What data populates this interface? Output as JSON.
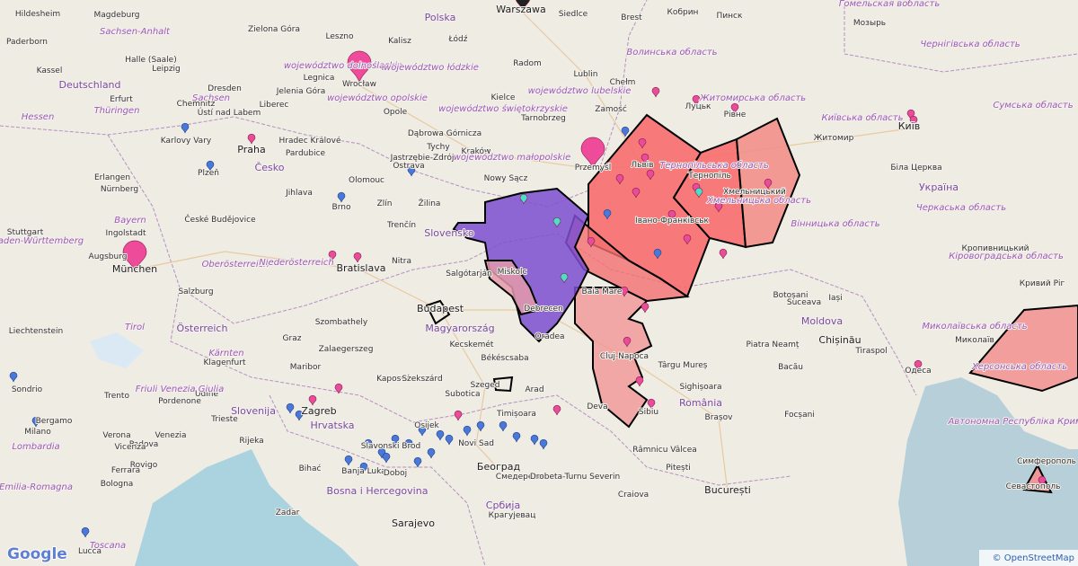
{
  "logo": "Google",
  "attribution": "© OpenStreetMap",
  "places": [
    "Warszawa",
    "Siedlce",
    "Brest",
    "Кобрин",
    "Пинск",
    "Мозырь",
    "Гомельская вобласть",
    "Hildesheim",
    "Magdeburg",
    "Sachsen-Anhalt",
    "Paderborn",
    "Kassel",
    "Halle (Saale)",
    "Leipzig",
    "Deutschland",
    "Erfurt",
    "Thüringen",
    "Dresden",
    "Sachsen",
    "Hessen",
    "Chemnitz",
    "Ústí nad Labem",
    "Karlovy Vary",
    "Praha",
    "Plzeň",
    "Česko",
    "Erlangen",
    "Nürnberg",
    "Bayern",
    "Ingolstadt",
    "Stuttgart",
    "Baden-Württemberg",
    "Augsburg",
    "München",
    "Salzburg",
    "Österreich",
    "Oberösterreich",
    "Niederösterreich",
    "České Budějovice",
    "Brno",
    "Polska",
    "Zielona Góra",
    "Leszno",
    "Kalisz",
    "Łódź",
    "Radom",
    "województwo dolnośląskie",
    "województwo łódzkie",
    "Wrocław",
    "Legnica",
    "Jelenia Góra",
    "Liberec",
    "Opole",
    "województwo opolskie",
    "Lublin",
    "województwo lubelskie",
    "Kielce",
    "województwo świętokrzyskie",
    "Chełm",
    "Zamość",
    "Tarnobrzeg",
    "Hradec Králové",
    "Pardubice",
    "Dąbrowa Górnicza",
    "Tychy",
    "Kraków",
    "Jastrzębie-Zdrój",
    "Ostrava",
    "województwo małopolskie",
    "Olomouc",
    "Jihlava",
    "Zlín",
    "Nowy Sącz",
    "Przemyśl",
    "Львів",
    "Волинська область",
    "Луцьк",
    "Рівне",
    "Житомирська область",
    "Житомир",
    "Київ",
    "Київська область",
    "Чернігівська область",
    "Сумська область",
    "Біла Церква",
    "Україна",
    "Тернопіль",
    "Тернопільська область",
    "Хмельницький",
    "Хмельницька область",
    "Івано-Франківськ",
    "Вінницька область",
    "Черкаська область",
    "Кропивницький",
    "Кіровоградська область",
    "Миколаївська область",
    "Миколаїв",
    "Херсонська область",
    "Одеса",
    "Автономна Республіка Крим",
    "Симферополь",
    "Севастополь",
    "Кривий Ріг",
    "Moldova",
    "Chișinău",
    "Tiraspol",
    "Botoșani",
    "Suceava",
    "Iași",
    "Piatra Neamț",
    "Bacău",
    "Focșani",
    "Brașov",
    "Sibiu",
    "Cluj-Napoca",
    "Târgu Mureș",
    "Sighișoara",
    "Deva",
    "România",
    "Baia Mare",
    "Oradea",
    "Debrecen",
    "Miskolc",
    "Slovensko",
    "Žilina",
    "Trenčín",
    "Nitra",
    "Bratislava",
    "Salgótarján",
    "Budapest",
    "Magyarország",
    "Kecskemét",
    "Békéscsaba",
    "Szeged",
    "Arad",
    "Timișoara",
    "Subotica",
    "Novi Sad",
    "Београд",
    "Смедерево",
    "Србија",
    "Крагујевац",
    "Osijek",
    "Slavonski Brod",
    "Zagreb",
    "Hrvatska",
    "Slovenija",
    "Trieste",
    "Rijeka",
    "Bihać",
    "Banja Luka",
    "Doboj",
    "Bosna i Hercegovina",
    "Sarajevo",
    "București",
    "Pitești",
    "Craiova",
    "Drobeta-Turnu Severin",
    "Râmnicu Vâlcea",
    "Szombathely",
    "Zalaegerszeg",
    "Graz",
    "Maribor",
    "Klagenfurt",
    "Kärnten",
    "Kaposvár",
    "Szekszárd",
    "Liechtenstein",
    "Tirol",
    "Trento",
    "Sondrio",
    "Bergamo",
    "Milano",
    "Lombardia",
    "Verona",
    "Padova",
    "Venezia",
    "Bologna",
    "Emilia-Romagna",
    "Toscana",
    "Pordenone",
    "Udine",
    "Friuli Venezia Giulia",
    "Zadar",
    "Lucca",
    "Rovigo",
    "Ferrara",
    "Vicenza"
  ]
}
